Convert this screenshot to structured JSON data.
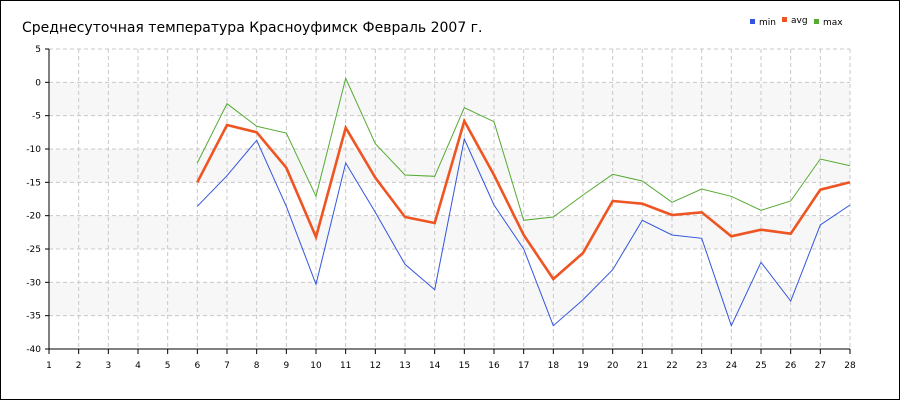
{
  "chart_data": {
    "type": "line",
    "title": "Среднесуточная температура Красноуфимск  Февраль 2007 г.",
    "xlabel": "",
    "ylabel": "",
    "x": [
      1,
      2,
      3,
      4,
      5,
      6,
      7,
      8,
      9,
      10,
      11,
      12,
      13,
      14,
      15,
      16,
      17,
      18,
      19,
      20,
      21,
      22,
      23,
      24,
      25,
      26,
      27,
      28
    ],
    "xlim": [
      1,
      28
    ],
    "ylim": [
      -40,
      5
    ],
    "yticks": [
      5,
      0,
      -5,
      -10,
      -15,
      -20,
      -25,
      -30,
      -35,
      -40
    ],
    "grid": true,
    "legend_position": "top-right",
    "series": [
      {
        "name": "min",
        "color": "#3355dd",
        "values": [
          null,
          null,
          null,
          null,
          null,
          -18.6,
          -14.0,
          -8.7,
          -18.6,
          -30.3,
          -12.1,
          -19.5,
          -27.3,
          -31.1,
          -8.5,
          -18.4,
          -25.0,
          -36.5,
          -32.6,
          -28.1,
          -20.7,
          -22.9,
          -23.4,
          -36.5,
          -27.0,
          -32.8,
          -21.4,
          -18.4
        ]
      },
      {
        "name": "avg",
        "color": "#ee5522",
        "values": [
          null,
          null,
          null,
          null,
          null,
          -15.0,
          -6.4,
          -7.5,
          -12.8,
          -23.2,
          -6.8,
          -14.3,
          -20.2,
          -21.1,
          -5.8,
          -13.9,
          -22.9,
          -29.5,
          -25.6,
          -17.8,
          -18.2,
          -19.9,
          -19.5,
          -23.1,
          -22.1,
          -22.7,
          -16.1,
          -15.0
        ]
      },
      {
        "name": "max",
        "color": "#55aa33",
        "values": [
          null,
          null,
          null,
          null,
          null,
          -12.1,
          -3.2,
          -6.6,
          -7.6,
          -17.1,
          0.6,
          -9.2,
          -13.9,
          -14.1,
          -3.8,
          -5.9,
          -20.7,
          -20.2,
          -16.9,
          -13.8,
          -14.8,
          -18.0,
          -16.0,
          -17.1,
          -19.2,
          -17.8,
          -11.5,
          -12.5
        ]
      }
    ]
  }
}
